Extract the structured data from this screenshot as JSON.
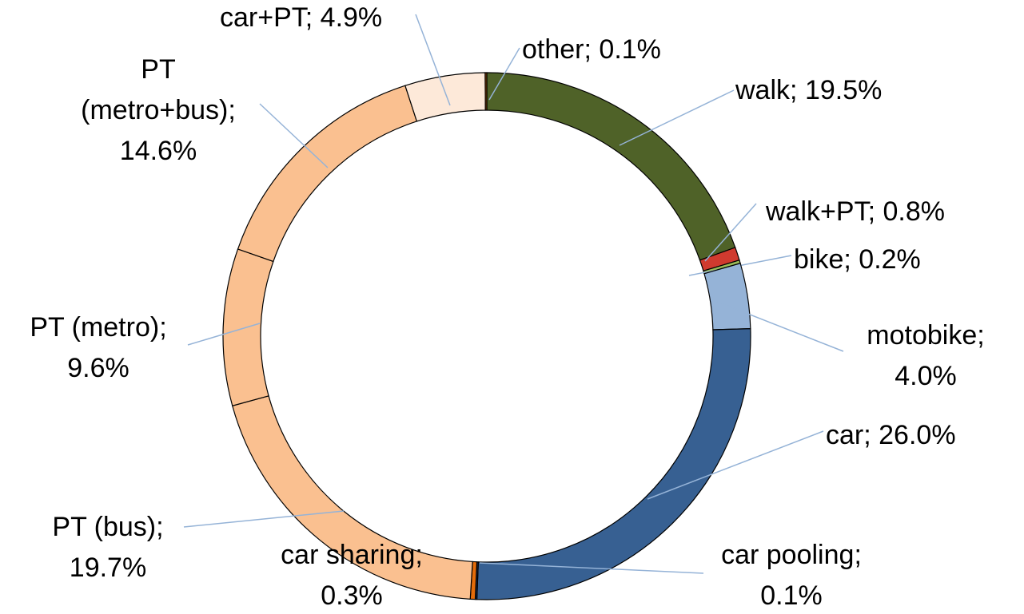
{
  "chart_data": {
    "type": "donut",
    "categories": [
      "walk",
      "walk+PT",
      "bike",
      "motobike",
      "car",
      "car pooling",
      "car sharing",
      "PT (bus)",
      "PT (metro)",
      "PT (metro+bus)",
      "car+PT",
      "other"
    ],
    "values": [
      19.5,
      0.8,
      0.2,
      4.0,
      26.0,
      0.1,
      0.3,
      19.7,
      9.6,
      14.6,
      4.9,
      0.1
    ],
    "value_labels": [
      "19.5%",
      "0.8%",
      "0.2%",
      "4.0%",
      "26.0%",
      "0.1%",
      "0.3%",
      "19.7%",
      "9.6%",
      "14.6%",
      "4.9%",
      "0.1%"
    ],
    "label_separator": ";",
    "colors": [
      "#4f6228",
      "#d03a2f",
      "#9bbb59",
      "#95b3d7",
      "#376092",
      "#1f3864",
      "#e46c0a",
      "#fac090",
      "#fac090",
      "#fac090",
      "#fde9d9",
      "#984807"
    ]
  }
}
